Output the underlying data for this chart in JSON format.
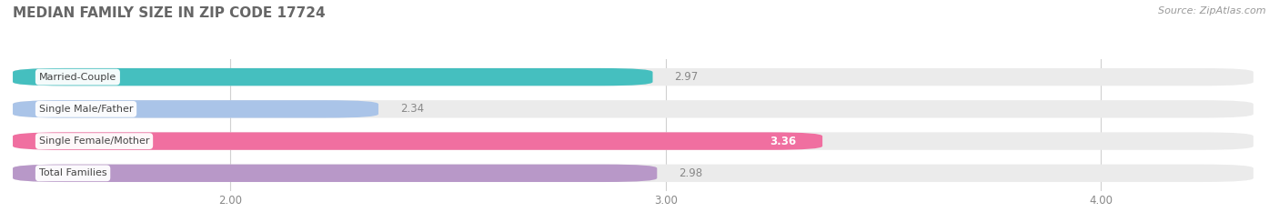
{
  "title": "MEDIAN FAMILY SIZE IN ZIP CODE 17724",
  "source": "Source: ZipAtlas.com",
  "categories": [
    "Married-Couple",
    "Single Male/Father",
    "Single Female/Mother",
    "Total Families"
  ],
  "values": [
    2.97,
    2.34,
    3.36,
    2.98
  ],
  "bar_colors": [
    "#45bfbf",
    "#aac4e8",
    "#f06fa0",
    "#b898c8"
  ],
  "bar_bg_color": "#ebebeb",
  "xlim": [
    1.5,
    4.35
  ],
  "xticks": [
    2.0,
    3.0,
    4.0
  ],
  "xtick_labels": [
    "2.00",
    "3.00",
    "4.00"
  ],
  "title_color": "#666666",
  "source_color": "#999999",
  "title_fontsize": 11,
  "bar_height": 0.55,
  "background_color": "#ffffff",
  "value_inside_cat": "Single Female/Mother"
}
